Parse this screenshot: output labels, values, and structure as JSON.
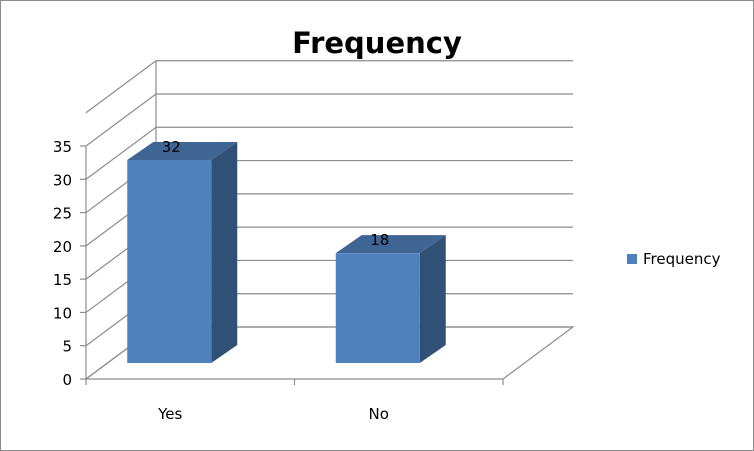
{
  "chart_data": {
    "type": "bar",
    "title": "Frequency",
    "categories": [
      "Yes",
      "No"
    ],
    "series": [
      {
        "name": "Frequency",
        "values": [
          32,
          18
        ],
        "color": "#4f81bd"
      }
    ],
    "ylim": [
      0,
      35
    ],
    "yticks": [
      0,
      5,
      10,
      15,
      20,
      25,
      30,
      35
    ],
    "xlabel": "",
    "ylabel": "",
    "grid": true,
    "three_d": true,
    "data_labels": true,
    "legend": {
      "position": "right"
    }
  }
}
